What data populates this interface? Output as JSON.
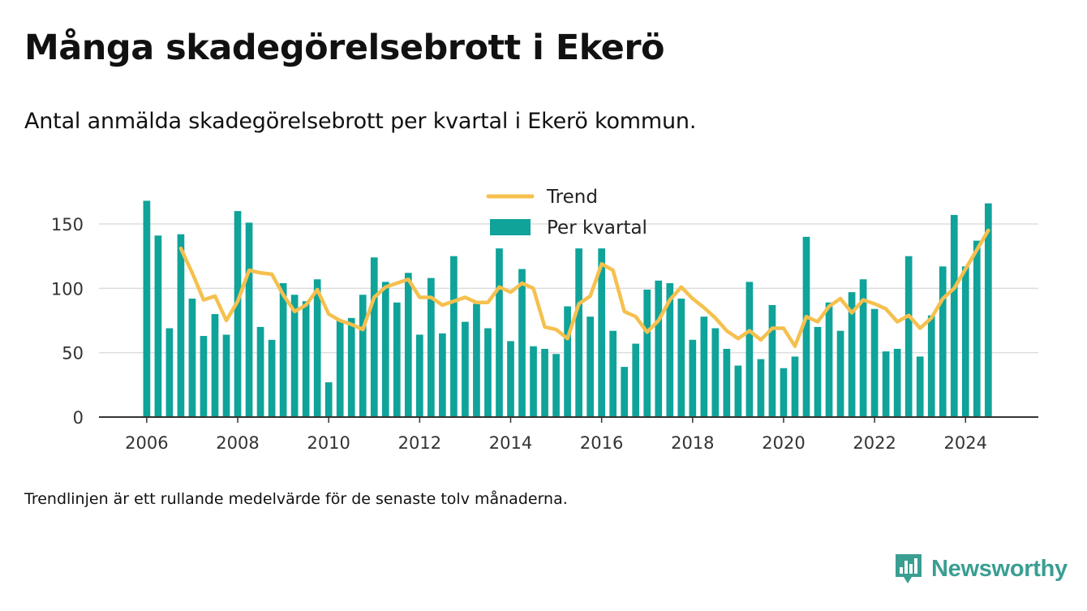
{
  "title": "Många skadegörelsebrott i Ekerö",
  "subtitle": "Antal anmälda skadegörelsebrott per kvartal i Ekerö kommun.",
  "footnote": "Trendlinjen är ett rullande medelvärde för de senaste tolv månaderna.",
  "brand": {
    "name": "Newsworthy",
    "icon": "newsworthy-logo-icon",
    "color": "#3a9e92"
  },
  "colors": {
    "bars": "#0fa39a",
    "trend": "#f5c04e",
    "grid": "#dddddd",
    "axis": "#333333"
  },
  "chart_data": {
    "type": "bar",
    "x_start": 2006.0,
    "x_step": 0.25,
    "xlim": [
      2004.95,
      2025.6
    ],
    "ylim": [
      0,
      170
    ],
    "yticks": [
      0,
      50,
      100,
      150
    ],
    "xticks": [
      2006,
      2008,
      2010,
      2012,
      2014,
      2016,
      2018,
      2020,
      2022,
      2024
    ],
    "grid": true,
    "legend": {
      "position": "top-center",
      "items": [
        "Trend",
        "Per kvartal"
      ]
    },
    "series": [
      {
        "name": "Per kvartal",
        "type": "bar",
        "values": [
          168,
          141,
          69,
          142,
          92,
          63,
          80,
          64,
          160,
          151,
          70,
          60,
          104,
          95,
          90,
          107,
          27,
          75,
          77,
          95,
          124,
          105,
          89,
          112,
          64,
          108,
          65,
          125,
          74,
          88,
          69,
          131,
          59,
          115,
          55,
          53,
          49,
          86,
          131,
          78,
          131,
          67,
          39,
          57,
          99,
          106,
          104,
          92,
          60,
          78,
          69,
          53,
          40,
          105,
          45,
          87,
          38,
          47,
          140,
          70,
          89,
          67,
          97,
          107,
          84,
          51,
          53,
          125,
          47,
          79,
          117,
          157,
          117,
          137,
          166
        ]
      },
      {
        "name": "Trend",
        "type": "line",
        "start_index": 3,
        "values": [
          131,
          112,
          91,
          94,
          75,
          90,
          114,
          112,
          111,
          95,
          82,
          87,
          99,
          80,
          75,
          72,
          68,
          93,
          101,
          104,
          107,
          93,
          93,
          87,
          90,
          93,
          89,
          89,
          101,
          97,
          104,
          100,
          70,
          68,
          61,
          88,
          94,
          119,
          114,
          82,
          78,
          66,
          75,
          91,
          101,
          92,
          85,
          77,
          67,
          61,
          67,
          60,
          69,
          69,
          55,
          78,
          74,
          86,
          92,
          81,
          91,
          88,
          84,
          74,
          79,
          69,
          77,
          92,
          100,
          115,
          130,
          145
        ]
      }
    ]
  }
}
